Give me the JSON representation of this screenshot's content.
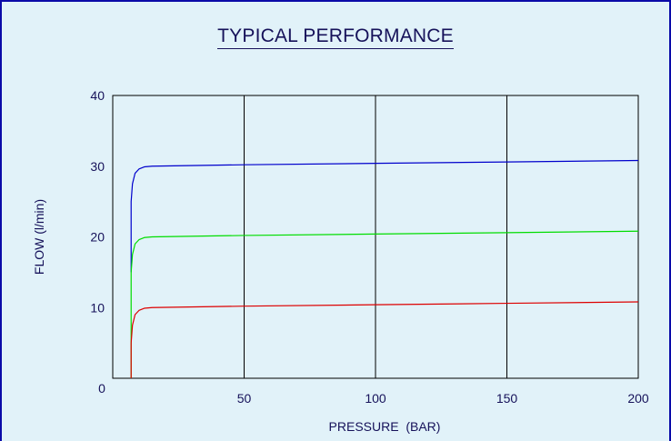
{
  "chart_data": {
    "type": "line",
    "title": "TYPICAL PERFORMANCE",
    "xlabel": "PRESSURE  (BAR)",
    "ylabel": "FLOW (l/min)",
    "xlim": [
      0,
      200
    ],
    "ylim": [
      0,
      40
    ],
    "x_ticks": [
      "0",
      "50",
      "100",
      "150",
      "200"
    ],
    "y_ticks": [
      "10",
      "20",
      "30",
      "40"
    ],
    "grid": {
      "vertical": true,
      "horizontal": false
    },
    "series": [
      {
        "color": "#0000cc",
        "x": [
          7,
          7,
          7.5,
          8.5,
          10,
          12,
          15,
          50,
          100,
          150,
          200
        ],
        "y": [
          15,
          25,
          27.5,
          29,
          29.6,
          29.9,
          30,
          30.2,
          30.4,
          30.6,
          30.8
        ]
      },
      {
        "color": "#00dd00",
        "x": [
          7,
          7,
          7.5,
          8.5,
          10,
          12,
          15,
          50,
          100,
          150,
          200
        ],
        "y": [
          0,
          15,
          17.5,
          19,
          19.6,
          19.9,
          20,
          20.2,
          20.4,
          20.6,
          20.8
        ]
      },
      {
        "color": "#dd0000",
        "x": [
          7,
          7,
          7.5,
          8.5,
          10,
          12,
          15,
          50,
          100,
          150,
          200
        ],
        "y": [
          0,
          5,
          7.5,
          9,
          9.6,
          9.9,
          10,
          10.2,
          10.4,
          10.6,
          10.8
        ]
      }
    ]
  }
}
